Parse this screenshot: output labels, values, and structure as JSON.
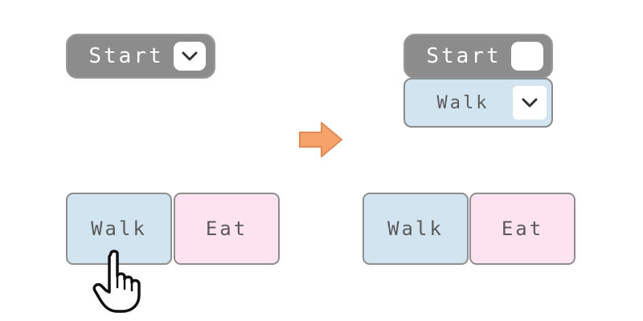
{
  "colors": {
    "start_bg": "#8c8c8c",
    "walk_bg": "#d3e4f1",
    "eat_bg": "#fde3ef",
    "text": "#5a5a5a",
    "arrow": "#f6a26b"
  },
  "before": {
    "start_label": "Start",
    "start_toggle_icon": "chevron-down-icon",
    "tiles": {
      "walk_label": "Walk",
      "eat_label": "Eat"
    },
    "pointer_icon": "hand-pointer-icon"
  },
  "transition_icon": "arrow-right-icon",
  "after": {
    "start_label": "Start",
    "start_toggle_icon": "blank-box",
    "dropdown": {
      "label": "Walk",
      "toggle_icon": "chevron-down-icon"
    },
    "tiles": {
      "walk_label": "Walk",
      "eat_label": "Eat"
    }
  }
}
